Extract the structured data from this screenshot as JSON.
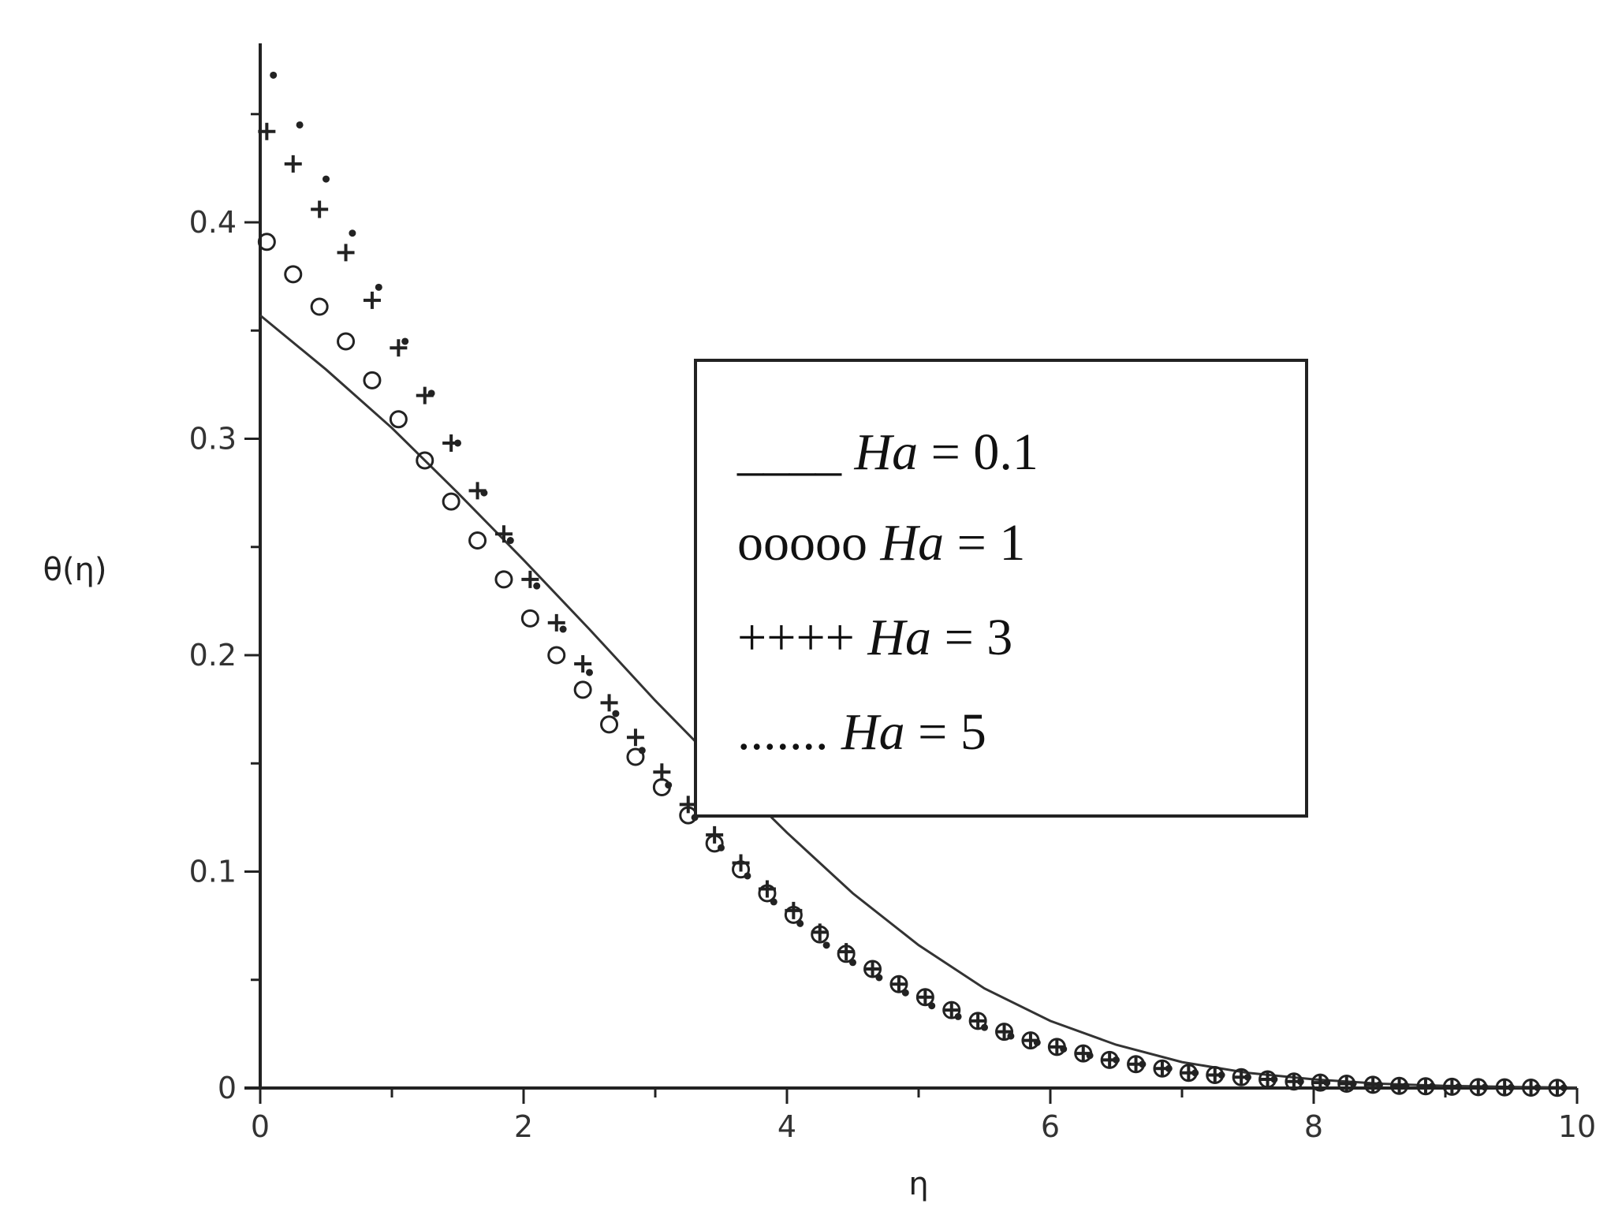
{
  "chart_data": {
    "type": "scatter",
    "xlabel": "η",
    "ylabel": "θ(η)",
    "xlim": [
      0,
      10
    ],
    "ylim": [
      0,
      0.48
    ],
    "xticks": [
      0,
      2,
      4,
      6,
      8,
      10
    ],
    "xtick_labels": [
      "0",
      "2",
      "4",
      "6",
      "8",
      "10"
    ],
    "yticks": [
      0,
      0.1,
      0.2,
      0.3,
      0.4
    ],
    "ytick_labels": [
      "0",
      "0.1",
      "0.2",
      "0.3",
      "0.4"
    ],
    "grid": false,
    "legend_position": "upper-right",
    "series": [
      {
        "style": "line",
        "legend_marker": "____",
        "legend_label": "Ha = 0.1",
        "legend_var": "Ha",
        "legend_op": " = ",
        "legend_val": "0.1",
        "x": [
          0,
          0.5,
          1,
          1.5,
          2,
          2.5,
          3,
          3.5,
          4,
          4.5,
          5,
          5.5,
          6,
          6.5,
          7,
          7.5,
          8,
          8.5,
          9,
          9.5,
          10
        ],
        "y": [
          0.357,
          0.332,
          0.305,
          0.275,
          0.244,
          0.212,
          0.179,
          0.148,
          0.118,
          0.09,
          0.066,
          0.046,
          0.031,
          0.02,
          0.012,
          0.007,
          0.004,
          0.002,
          0.001,
          0.0005,
          0.0002
        ]
      },
      {
        "style": "circle",
        "legend_marker": "ooooo",
        "legend_label": "Ha = 1",
        "legend_var": "Ha",
        "legend_op": " = ",
        "legend_val": "1",
        "x": [
          0.05,
          0.25,
          0.45,
          0.65,
          0.85,
          1.05,
          1.25,
          1.45,
          1.65,
          1.85,
          2.05,
          2.25,
          2.45,
          2.65,
          2.85,
          3.05,
          3.25,
          3.45,
          3.65,
          3.85,
          4.05,
          4.25,
          4.45,
          4.65,
          4.85,
          5.05,
          5.25,
          5.45,
          5.65,
          5.85,
          6.05,
          6.25,
          6.45,
          6.65,
          6.85,
          7.05,
          7.25,
          7.45,
          7.65,
          7.85,
          8.05,
          8.25,
          8.45,
          8.65,
          8.85,
          9.05,
          9.25,
          9.45,
          9.65,
          9.85
        ],
        "y": [
          0.391,
          0.376,
          0.361,
          0.345,
          0.327,
          0.309,
          0.29,
          0.271,
          0.253,
          0.235,
          0.217,
          0.2,
          0.184,
          0.168,
          0.153,
          0.139,
          0.126,
          0.113,
          0.101,
          0.09,
          0.08,
          0.071,
          0.062,
          0.055,
          0.048,
          0.042,
          0.036,
          0.031,
          0.026,
          0.022,
          0.019,
          0.016,
          0.013,
          0.011,
          0.009,
          0.007,
          0.006,
          0.005,
          0.004,
          0.003,
          0.0025,
          0.002,
          0.0015,
          0.001,
          0.0008,
          0.0006,
          0.0004,
          0.0003,
          0.0002,
          0.0001
        ]
      },
      {
        "style": "plus",
        "legend_marker": "++++",
        "legend_label": "Ha = 3",
        "legend_var": "Ha",
        "legend_op": " = ",
        "legend_val": "3",
        "x": [
          0.05,
          0.25,
          0.45,
          0.65,
          0.85,
          1.05,
          1.25,
          1.45,
          1.65,
          1.85,
          2.05,
          2.25,
          2.45,
          2.65,
          2.85,
          3.05,
          3.25,
          3.45,
          3.65,
          3.85,
          4.05,
          4.25,
          4.45,
          4.65,
          4.85,
          5.05,
          5.25,
          5.45,
          5.65,
          5.85,
          6.05,
          6.25,
          6.45,
          6.65,
          6.85,
          7.05,
          7.25,
          7.45,
          7.65,
          7.85,
          8.05,
          8.25,
          8.45,
          8.65,
          8.85,
          9.05,
          9.25,
          9.45,
          9.65,
          9.85
        ],
        "y": [
          0.442,
          0.427,
          0.406,
          0.386,
          0.364,
          0.342,
          0.32,
          0.298,
          0.276,
          0.256,
          0.235,
          0.215,
          0.196,
          0.178,
          0.162,
          0.146,
          0.131,
          0.117,
          0.104,
          0.092,
          0.082,
          0.072,
          0.063,
          0.055,
          0.048,
          0.042,
          0.036,
          0.031,
          0.026,
          0.022,
          0.019,
          0.016,
          0.013,
          0.011,
          0.009,
          0.007,
          0.006,
          0.005,
          0.004,
          0.003,
          0.0025,
          0.002,
          0.0015,
          0.001,
          0.0008,
          0.0006,
          0.0004,
          0.0003,
          0.0002,
          0.0001
        ]
      },
      {
        "style": "dot",
        "legend_marker": ".......",
        "legend_label": "Ha = 5",
        "legend_var": "Ha",
        "legend_op": " = ",
        "legend_val": "5",
        "x": [
          0.1,
          0.3,
          0.5,
          0.7,
          0.9,
          1.1,
          1.3,
          1.5,
          1.7,
          1.9,
          2.1,
          2.3,
          2.5,
          2.7,
          2.9,
          3.1,
          3.3,
          3.5,
          3.7,
          3.9,
          4.1,
          4.3,
          4.5,
          4.7,
          4.9,
          5.1,
          5.3,
          5.5,
          5.7,
          5.9,
          6.1,
          6.3,
          6.5,
          6.7,
          6.9,
          7.1,
          7.3,
          7.5,
          7.7,
          7.9,
          8.1,
          8.3,
          8.5,
          8.7,
          8.9,
          9.1,
          9.3,
          9.5,
          9.7,
          9.9
        ],
        "y": [
          0.468,
          0.445,
          0.42,
          0.395,
          0.37,
          0.345,
          0.321,
          0.298,
          0.275,
          0.253,
          0.232,
          0.212,
          0.192,
          0.173,
          0.156,
          0.14,
          0.125,
          0.111,
          0.098,
          0.086,
          0.076,
          0.066,
          0.058,
          0.051,
          0.044,
          0.038,
          0.033,
          0.028,
          0.024,
          0.021,
          0.018,
          0.015,
          0.013,
          0.011,
          0.009,
          0.007,
          0.006,
          0.005,
          0.004,
          0.003,
          0.0025,
          0.002,
          0.0015,
          0.001,
          0.0008,
          0.0006,
          0.0004,
          0.0003,
          0.0002,
          0.0001
        ]
      }
    ]
  }
}
